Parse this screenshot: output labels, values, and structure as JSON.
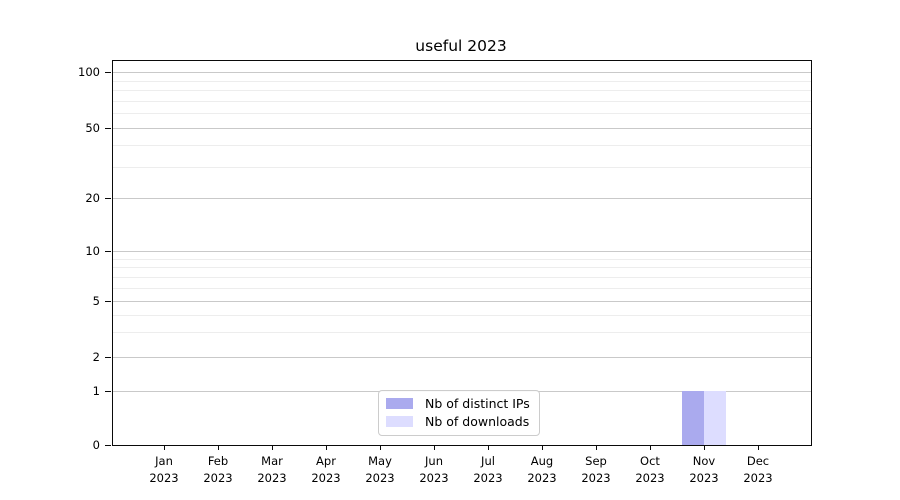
{
  "chart_data": {
    "type": "bar",
    "title": "useful 2023",
    "categories": [
      "Jan",
      "Feb",
      "Mar",
      "Apr",
      "May",
      "Jun",
      "Jul",
      "Aug",
      "Sep",
      "Oct",
      "Nov",
      "Dec"
    ],
    "x_year": "2023",
    "series": [
      {
        "name": "Nb of distinct IPs",
        "color": "#aaaaee",
        "values": [
          0,
          0,
          0,
          0,
          0,
          0,
          0,
          0,
          0,
          0,
          1,
          0
        ]
      },
      {
        "name": "Nb of downloads",
        "color": "#ddddff",
        "values": [
          0,
          0,
          0,
          0,
          0,
          0,
          0,
          0,
          0,
          0,
          1,
          0
        ]
      }
    ],
    "yticks": [
      0,
      1,
      2,
      5,
      10,
      20,
      50,
      100
    ],
    "minor_yticks": [
      3,
      4,
      6,
      7,
      8,
      9,
      30,
      40,
      60,
      70,
      80,
      90
    ],
    "ylim": [
      0,
      100
    ],
    "yscale": "symlog",
    "grid": true,
    "legend_position": "lower center",
    "axis_color": "#0a0a0a",
    "major_grid_color": "#c9c9c9",
    "minor_grid_color": "#ededed"
  }
}
